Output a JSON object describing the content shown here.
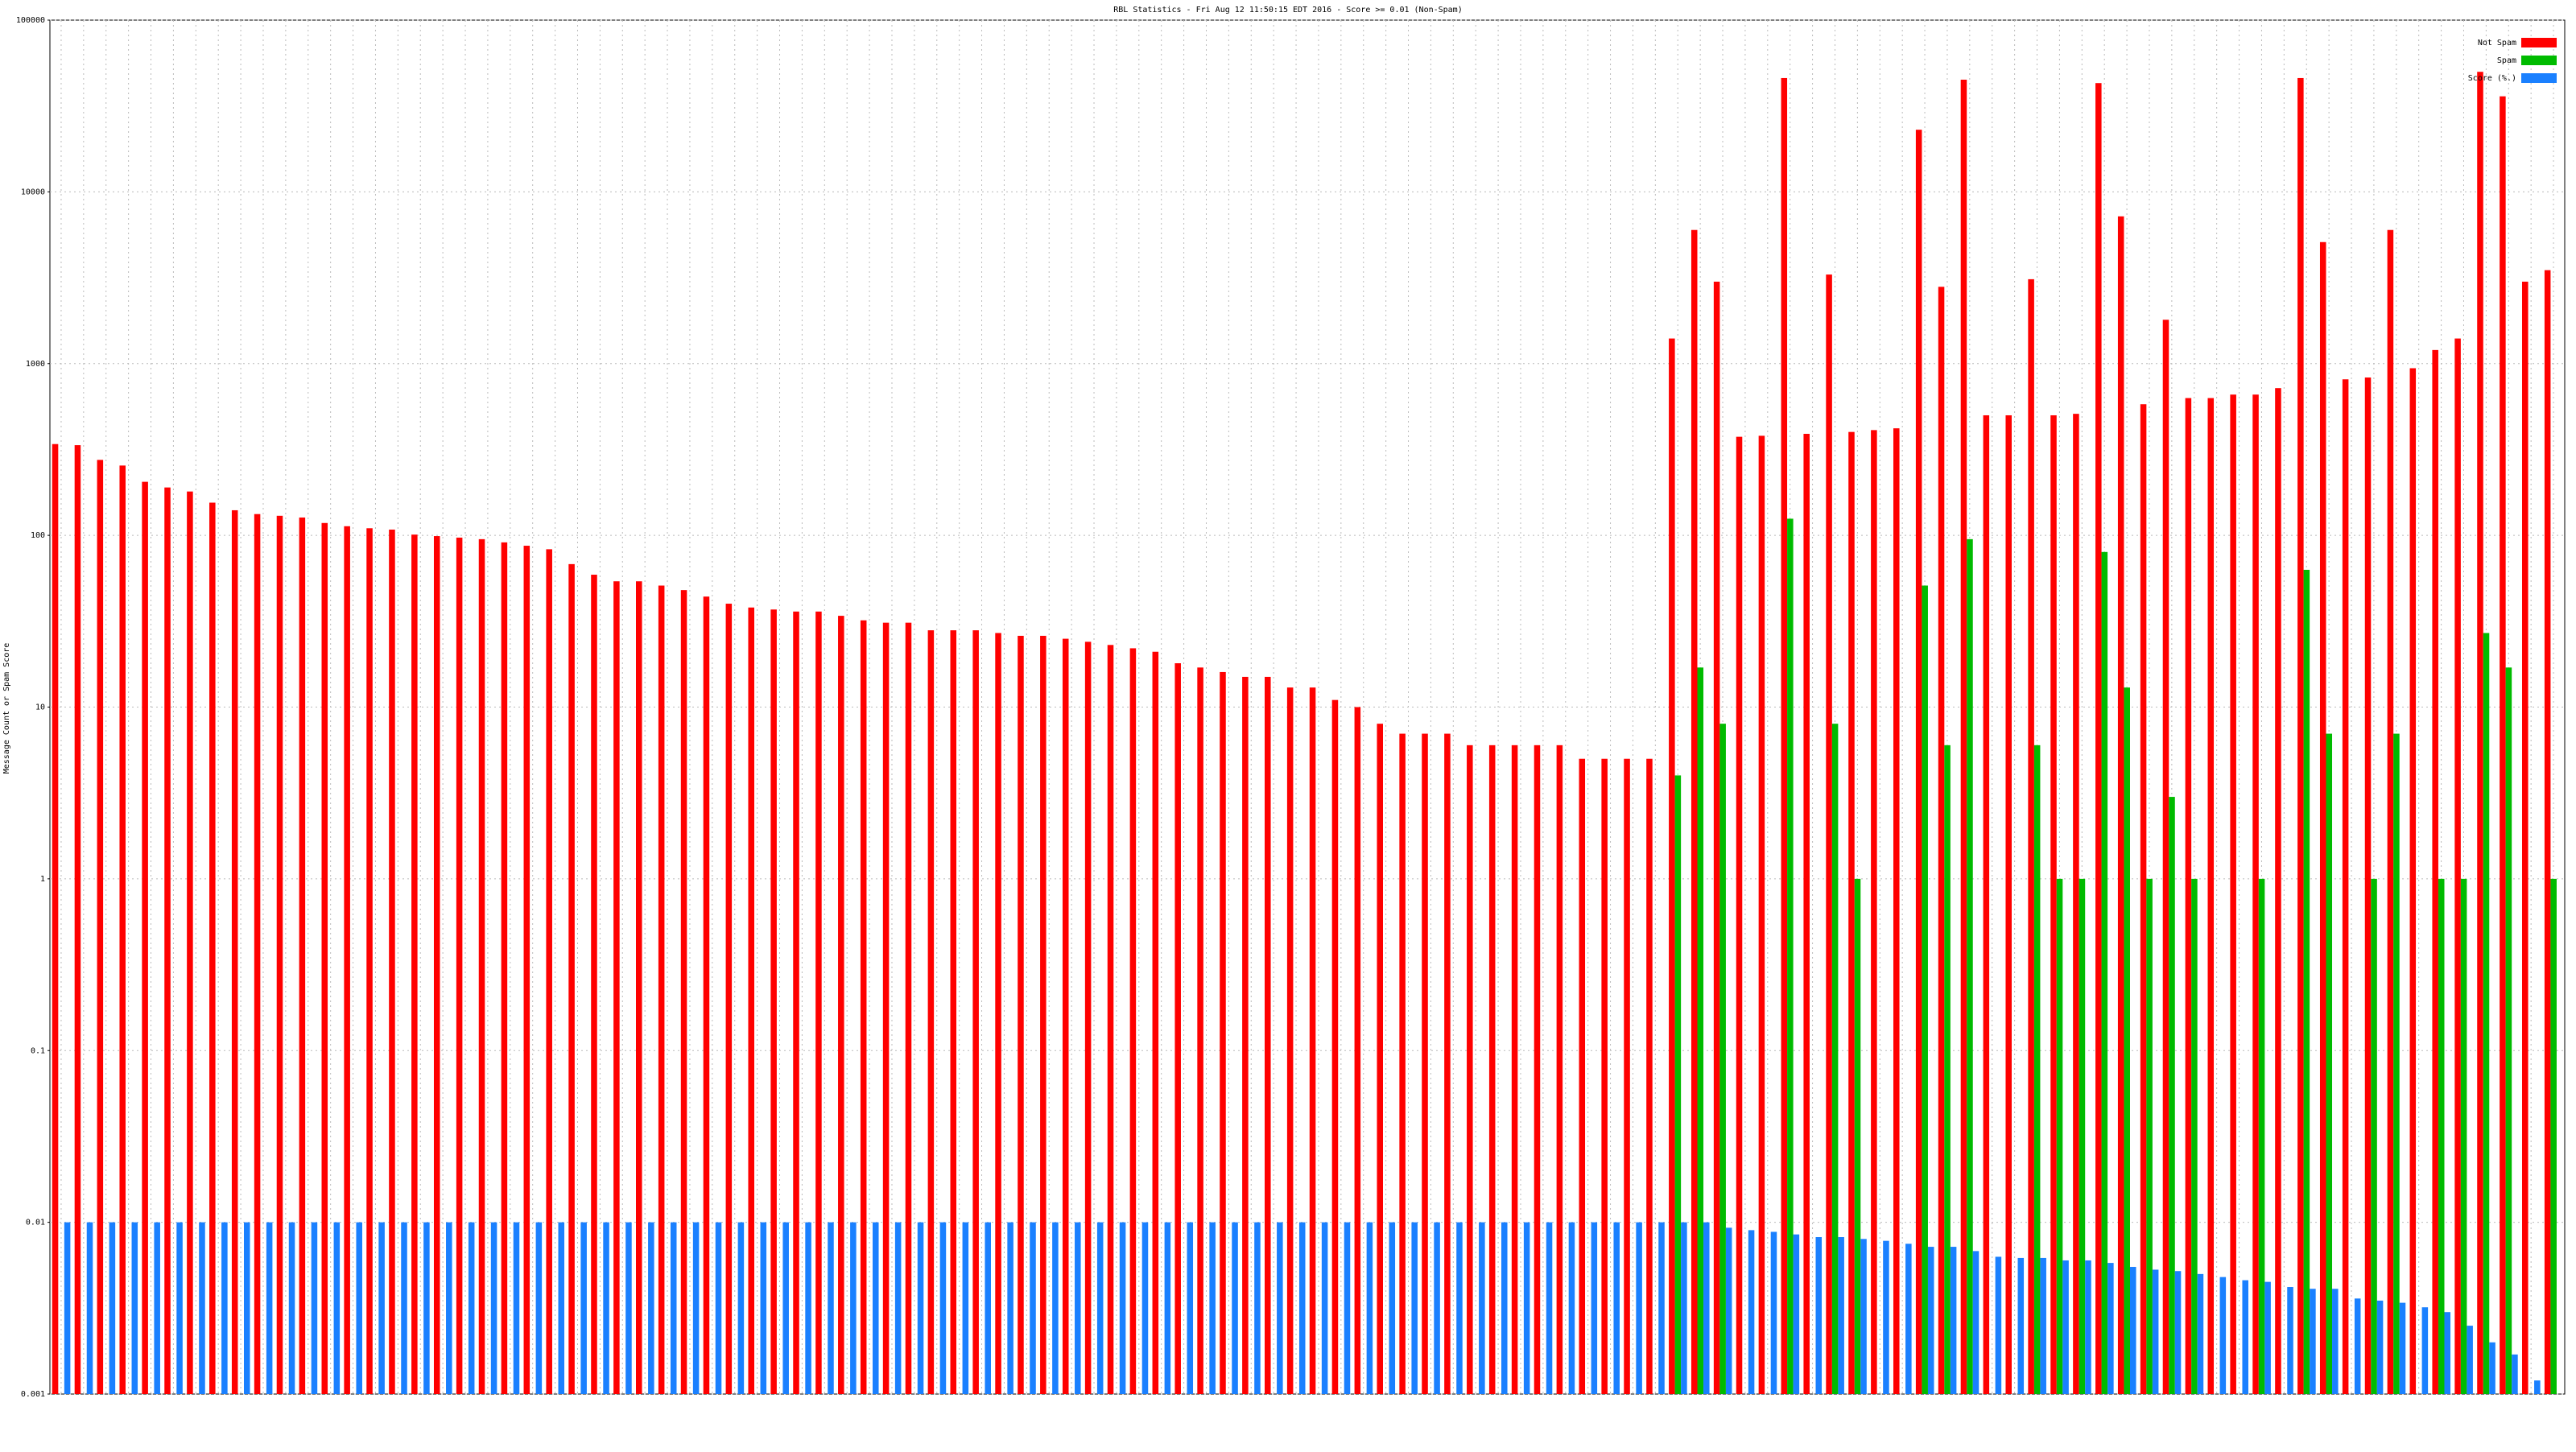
{
  "chart_data": {
    "type": "bar",
    "title": "RBL Statistics - Fri Aug 12 11:50:15 EDT 2016 - Score >= 0.01 (Non-Spam)",
    "y_label": "Message Count or Spam Score",
    "log_scale": true,
    "grid": true,
    "legend": "top-right",
    "ylim": [
      0.001,
      100000
    ],
    "yticks": [
      0.001,
      0.01,
      0.1,
      1,
      10,
      100,
      1000,
      10000,
      100000
    ],
    "categories": [
      null,
      null,
      null,
      null,
      null,
      null,
      null,
      null,
      null,
      null,
      null,
      null,
      null,
      null,
      null,
      null,
      null,
      null,
      null,
      null,
      null,
      null,
      null,
      null,
      null,
      null,
      null,
      null,
      null,
      null,
      null,
      null,
      null,
      null,
      null,
      null,
      null,
      null,
      null,
      null,
      null,
      null,
      null,
      null,
      null,
      null,
      null,
      null,
      null,
      null,
      null,
      null,
      null,
      null,
      null,
      null,
      null,
      null,
      null,
      null,
      null,
      null,
      null,
      null,
      null,
      null,
      null,
      null,
      null,
      null,
      null,
      null,
      null,
      null,
      null,
      null,
      null,
      null,
      null,
      null,
      null,
      null,
      null,
      null,
      null,
      null,
      null,
      null,
      null,
      null,
      null,
      null,
      null,
      null,
      null,
      null,
      null,
      null,
      null,
      null,
      null,
      null,
      null,
      null,
      null,
      null,
      null,
      null,
      null,
      null,
      null,
      null
    ],
    "series": [
      {
        "name": "Not Spam",
        "color": "#ff0000",
        "values": [
          340,
          335,
          275,
          255,
          205,
          190,
          180,
          155,
          140,
          133,
          130,
          127,
          118,
          113,
          110,
          108,
          101,
          99,
          97,
          95,
          91,
          87,
          83,
          68,
          59,
          54,
          54,
          51,
          48,
          44,
          40,
          38,
          37,
          36,
          36,
          34,
          32,
          31,
          31,
          28,
          28,
          28,
          27,
          26,
          26,
          25,
          24,
          23,
          22,
          21,
          18,
          17,
          16,
          15,
          15,
          13,
          13,
          11,
          10,
          8,
          7,
          7,
          7,
          6,
          6,
          6,
          6,
          6,
          5,
          5,
          5,
          5,
          1400,
          6000,
          3000,
          375,
          380,
          46000,
          390,
          3300,
          400,
          410,
          420,
          23000,
          2800,
          45000,
          500,
          500,
          3100,
          500,
          510,
          43000,
          7200,
          580,
          1800,
          630,
          630,
          660,
          660,
          720,
          46000,
          5100,
          810,
          830,
          6000,
          940,
          1200,
          1400,
          50000,
          36000,
          3000,
          3500
        ]
      },
      {
        "name": "Spam",
        "color": "#00bb00",
        "values": [
          null,
          null,
          null,
          null,
          null,
          null,
          null,
          null,
          null,
          null,
          null,
          null,
          null,
          null,
          null,
          null,
          null,
          null,
          null,
          null,
          null,
          null,
          null,
          null,
          null,
          null,
          null,
          null,
          null,
          null,
          null,
          null,
          null,
          null,
          null,
          null,
          null,
          null,
          null,
          null,
          null,
          null,
          null,
          null,
          null,
          null,
          null,
          null,
          null,
          null,
          null,
          null,
          null,
          null,
          null,
          null,
          null,
          null,
          null,
          null,
          null,
          null,
          null,
          null,
          null,
          null,
          null,
          null,
          null,
          null,
          null,
          null,
          4,
          17,
          8,
          null,
          null,
          125,
          null,
          8,
          1,
          null,
          null,
          51,
          6,
          95,
          null,
          null,
          6,
          1,
          1,
          80,
          13,
          1,
          3,
          1,
          null,
          null,
          1,
          null,
          63,
          7,
          null,
          1,
          7,
          null,
          1,
          1,
          27,
          17,
          null,
          1
        ]
      },
      {
        "name": "Score (%.)",
        "color": "#1a80ff",
        "values": [
          0.01,
          0.01,
          0.01,
          0.01,
          0.01,
          0.01,
          0.01,
          0.01,
          0.01,
          0.01,
          0.01,
          0.01,
          0.01,
          0.01,
          0.01,
          0.01,
          0.01,
          0.01,
          0.01,
          0.01,
          0.01,
          0.01,
          0.01,
          0.01,
          0.01,
          0.01,
          0.01,
          0.01,
          0.01,
          0.01,
          0.01,
          0.01,
          0.01,
          0.01,
          0.01,
          0.01,
          0.01,
          0.01,
          0.01,
          0.01,
          0.01,
          0.01,
          0.01,
          0.01,
          0.01,
          0.01,
          0.01,
          0.01,
          0.01,
          0.01,
          0.01,
          0.01,
          0.01,
          0.01,
          0.01,
          0.01,
          0.01,
          0.01,
          0.01,
          0.01,
          0.01,
          0.01,
          0.01,
          0.01,
          0.01,
          0.01,
          0.01,
          0.01,
          0.01,
          0.01,
          0.01,
          0.01,
          0.01,
          0.01,
          0.0093,
          0.009,
          0.0088,
          0.0085,
          0.0082,
          0.0082,
          0.008,
          0.0078,
          0.0075,
          0.0072,
          0.0072,
          0.0068,
          0.0063,
          0.0062,
          0.0062,
          0.006,
          0.006,
          0.0058,
          0.0055,
          0.0053,
          0.0052,
          0.005,
          0.0048,
          0.0046,
          0.0045,
          0.0042,
          0.0041,
          0.0041,
          0.0036,
          0.0035,
          0.0034,
          0.0032,
          0.003,
          0.0025,
          0.002,
          0.0017,
          0.0012,
          null
        ]
      }
    ]
  }
}
